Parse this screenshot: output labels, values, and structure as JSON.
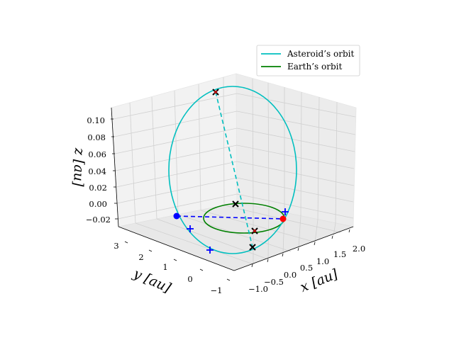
{
  "chart_data": {
    "type": "3d-line",
    "title": "",
    "xlabel": "x [au]",
    "ylabel": "y [au]",
    "zlabel": "z [au]",
    "x_ticks": [
      "−1.0",
      "−0.5",
      "0.0",
      "0.5",
      "1.0",
      "1.5",
      "2.0"
    ],
    "y_ticks": [
      "−1",
      "0",
      "1",
      "2",
      "3"
    ],
    "z_ticks": [
      "−0.02",
      "0.00",
      "0.02",
      "0.04",
      "0.06",
      "0.08",
      "0.10"
    ],
    "legend": {
      "placement": "top-right",
      "entries": [
        "Asteroid’s orbit",
        "Earth’s orbit"
      ]
    },
    "colors": {
      "asteroid": "#00bfbf",
      "earth": "#008000",
      "dashed_node": "#0000ff",
      "marker_red": "#ff0000"
    },
    "grid": true,
    "series": [
      {
        "name": "Asteroid’s orbit",
        "kind": "ellipse-orbit",
        "semi_major_axis_au": 1.46,
        "eccentricity": 0.22,
        "inclination_deg": 10.8
      },
      {
        "name": "Earth’s orbit",
        "kind": "circle-orbit",
        "radius_au": 1.0
      }
    ],
    "markers": [
      {
        "kind": "x",
        "color": "#000000"
      },
      {
        "kind": "x",
        "color": "#000000"
      },
      {
        "kind": "x",
        "color": "#000000",
        "fill": "#ff0000"
      },
      {
        "kind": "x",
        "color": "#000000",
        "fill": "#ff0000"
      },
      {
        "kind": "+",
        "color": "#0000ff"
      },
      {
        "kind": "+",
        "color": "#0000ff"
      },
      {
        "kind": "+",
        "color": "#0000ff"
      },
      {
        "kind": "dot",
        "color": "#0000ff"
      },
      {
        "kind": "dot",
        "color": "#ff0000"
      }
    ]
  }
}
